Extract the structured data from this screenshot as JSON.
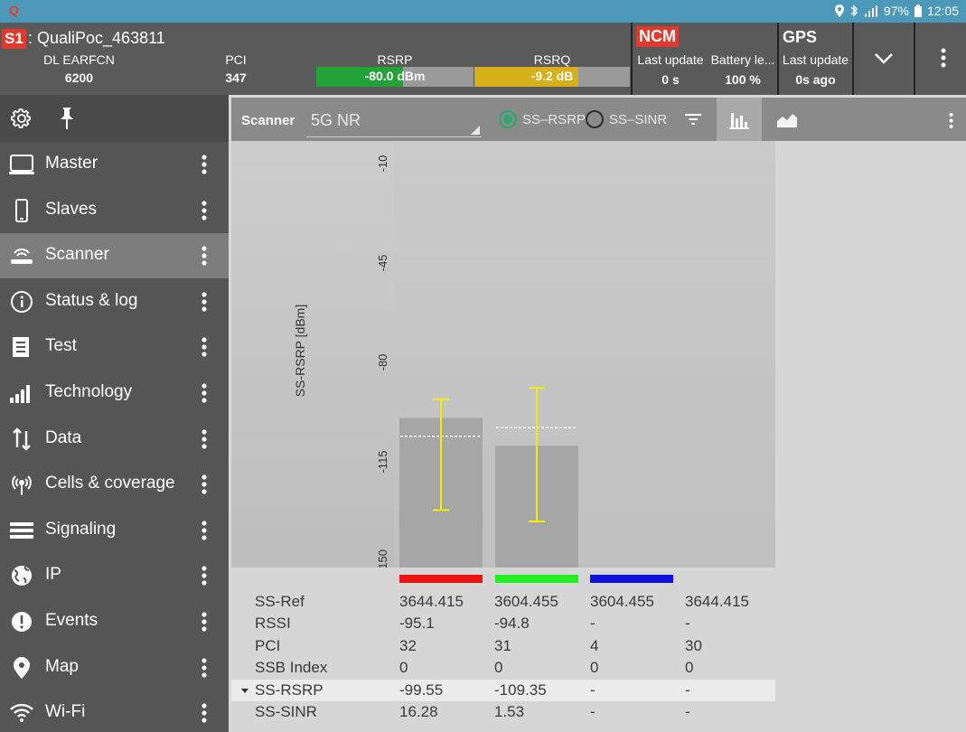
{
  "status_bar": {
    "app_letter": "Q",
    "battery": "97%",
    "time": "12:05"
  },
  "header": {
    "slot": "S1",
    "device": ": QualiPoc_463811",
    "dl_earfcn_label": "DL EARFCN",
    "dl_earfcn_value": "6200",
    "pci_label": "PCI",
    "pci_value": "347",
    "rsrp_label": "RSRP",
    "rsrp_value": "-80.0 dBm",
    "rsrp_fill": 0.55,
    "rsrq_label": "RSRQ",
    "rsrq_value": "-9.2 dB",
    "rsrq_fill": 0.67,
    "ncm": {
      "title": "NCM",
      "last_update_label": "Last update",
      "last_update_value": "0 s",
      "battery_label": "Battery le...",
      "battery_value": "100 %"
    },
    "gps": {
      "title": "GPS",
      "last_update_label": "Last update",
      "last_update_value": "0s ago"
    }
  },
  "sidebar": {
    "items": [
      {
        "label": "Master",
        "icon": "monitor-icon"
      },
      {
        "label": "Slaves",
        "icon": "phone-icon"
      },
      {
        "label": "Scanner",
        "icon": "scanner-icon",
        "active": true
      },
      {
        "label": "Status & log",
        "icon": "info-icon"
      },
      {
        "label": "Test",
        "icon": "test-icon"
      },
      {
        "label": "Technology",
        "icon": "signal-bars-icon"
      },
      {
        "label": "Data",
        "icon": "data-arrows-icon"
      },
      {
        "label": "Cells & coverage",
        "icon": "antenna-icon"
      },
      {
        "label": "Signaling",
        "icon": "signaling-icon"
      },
      {
        "label": "IP",
        "icon": "globe-icon"
      },
      {
        "label": "Events",
        "icon": "alert-icon"
      },
      {
        "label": "Map",
        "icon": "map-pin-icon"
      },
      {
        "label": "Wi-Fi",
        "icon": "wifi-icon"
      }
    ]
  },
  "toolbar": {
    "title": "Scanner",
    "technology": "5G NR",
    "radio_1": "SS–RSRP",
    "radio_2": "SS–SINR",
    "selected_radio": "SS–RSRP"
  },
  "chart_data": {
    "type": "bar",
    "ylabel": "SS-RSRP [dBm]",
    "ylim": [
      -150,
      -10
    ],
    "yticks": [
      "-10",
      "-45",
      "-80",
      "-115",
      "-150"
    ],
    "ytick_values": [
      -10,
      -45,
      -80,
      -115,
      -150
    ],
    "bars": [
      {
        "value": -99.55,
        "avg": -106,
        "err_high": -93,
        "err_low": -132,
        "color": "#ee1111"
      },
      {
        "value": -109.35,
        "avg": -103,
        "err_high": -89,
        "err_low": -136,
        "color": "#22ee22"
      },
      {
        "value": null,
        "color": "#1111dd"
      },
      {
        "value": null,
        "color": ""
      }
    ]
  },
  "table": {
    "rows": [
      {
        "label": "SS-Ref",
        "values": [
          "3644.415",
          "3604.455",
          "3604.455",
          "3644.415"
        ]
      },
      {
        "label": "RSSI",
        "values": [
          "-95.1",
          "-94.8",
          "-",
          "-"
        ]
      },
      {
        "label": "PCI",
        "values": [
          "32",
          "31",
          "4",
          "30"
        ]
      },
      {
        "label": "SSB Index",
        "values": [
          "0",
          "0",
          "0",
          "0"
        ]
      },
      {
        "label": "SS-RSRP",
        "values": [
          "-99.55",
          "-109.35",
          "-",
          "-"
        ],
        "sorted": true
      },
      {
        "label": "SS-SINR",
        "values": [
          "16.28",
          "1.53",
          "-",
          "-"
        ]
      }
    ]
  }
}
